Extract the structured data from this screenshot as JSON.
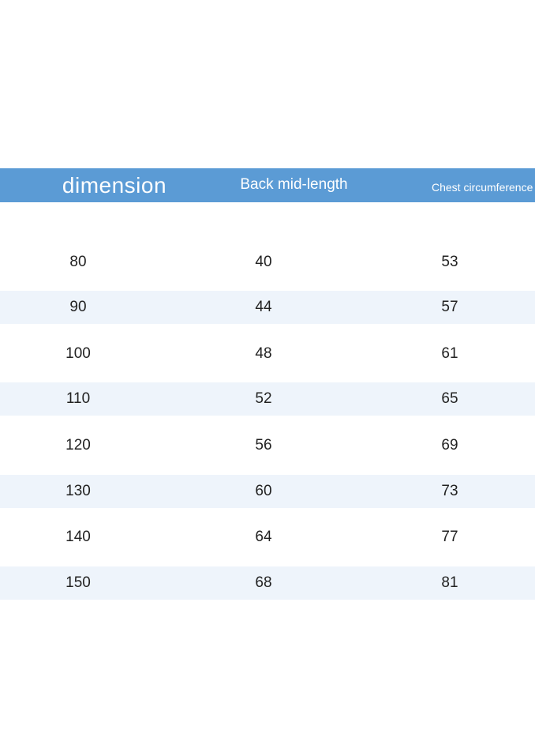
{
  "table": {
    "headers": {
      "dimension": "dimension",
      "back_mid_length": "Back mid-length",
      "chest_circumference": "Chest circumference"
    },
    "rows": [
      {
        "dimension": "80",
        "back_mid_length": "40",
        "chest_circumference": "53"
      },
      {
        "dimension": "90",
        "back_mid_length": "44",
        "chest_circumference": "57"
      },
      {
        "dimension": "100",
        "back_mid_length": "48",
        "chest_circumference": "61"
      },
      {
        "dimension": "110",
        "back_mid_length": "52",
        "chest_circumference": "65"
      },
      {
        "dimension": "120",
        "back_mid_length": "56",
        "chest_circumference": "69"
      },
      {
        "dimension": "130",
        "back_mid_length": "60",
        "chest_circumference": "73"
      },
      {
        "dimension": "140",
        "back_mid_length": "64",
        "chest_circumference": "77"
      },
      {
        "dimension": "150",
        "back_mid_length": "68",
        "chest_circumference": "81"
      }
    ]
  },
  "colors": {
    "header_background": "#5b9bd5",
    "header_text": "#ffffff",
    "stripe_background": "#eef4fb",
    "cell_text": "#222222"
  }
}
